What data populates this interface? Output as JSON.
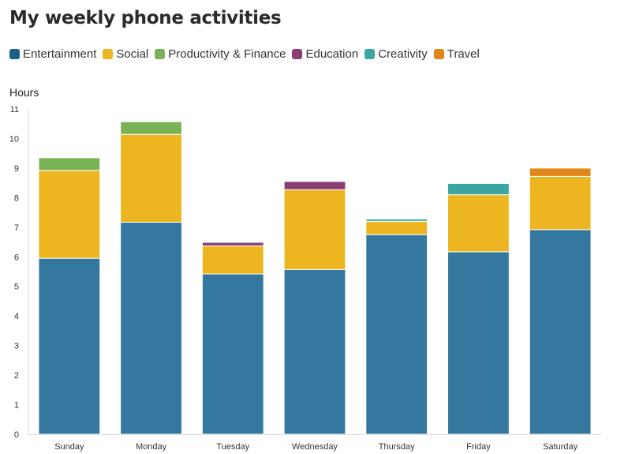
{
  "chart_data": {
    "type": "bar",
    "stacked": true,
    "title": "My weekly phone activities",
    "ylabel": "Hours",
    "xlabel": "",
    "ylim": [
      0,
      11
    ],
    "yticks": [
      0,
      1,
      2,
      3,
      4,
      5,
      6,
      7,
      8,
      9,
      10,
      11
    ],
    "grid": false,
    "legend_position": "top-left",
    "categories": [
      "Sunday",
      "Monday",
      "Tuesday",
      "Wednesday",
      "Thursday",
      "Friday",
      "Saturday"
    ],
    "series": [
      {
        "name": "Entertainment",
        "color": "#34779f",
        "legend_color": "#1e5f86",
        "values": [
          5.95,
          7.17,
          5.42,
          5.57,
          6.75,
          6.17,
          6.92
        ]
      },
      {
        "name": "Social",
        "color": "#edb520",
        "legend_color": "#edb520",
        "values": [
          2.97,
          2.97,
          0.95,
          2.7,
          0.45,
          1.93,
          1.8
        ]
      },
      {
        "name": "Productivity & Finance",
        "color": "#7ab356",
        "legend_color": "#7ab356",
        "values": [
          0.43,
          0.43,
          0,
          0,
          0,
          0,
          0
        ]
      },
      {
        "name": "Education",
        "color": "#8c3e74",
        "legend_color": "#8c3e74",
        "values": [
          0,
          0,
          0.12,
          0.28,
          0,
          0,
          0
        ]
      },
      {
        "name": "Creativity",
        "color": "#3aa5a1",
        "legend_color": "#3aa5a1",
        "values": [
          0,
          0,
          0,
          0,
          0.08,
          0.38,
          0
        ]
      },
      {
        "name": "Travel",
        "color": "#e08718",
        "legend_color": "#e08718",
        "values": [
          0,
          0,
          0,
          0,
          0,
          0,
          0.28
        ]
      }
    ]
  }
}
